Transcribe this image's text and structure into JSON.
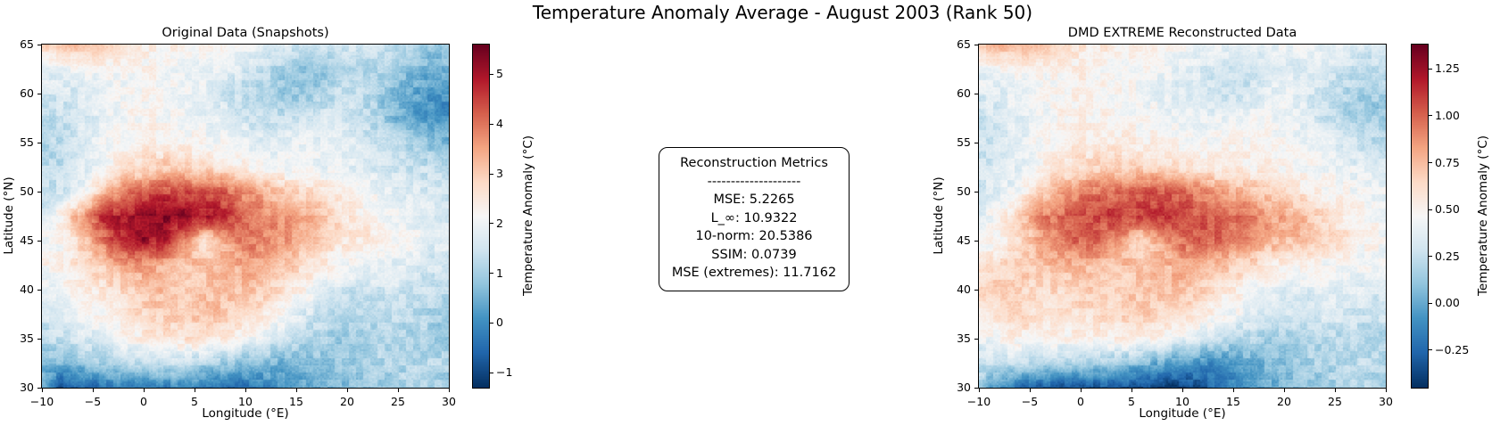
{
  "figure": {
    "suptitle": "Temperature Anomaly Average - August 2003 (Rank 50)",
    "background": "#ffffff"
  },
  "colormap": {
    "name": "RdBu_r",
    "anchors": [
      "#053061",
      "#2166ac",
      "#4393c3",
      "#92c5de",
      "#d1e5f0",
      "#f7f7f7",
      "#fddbc7",
      "#f4a582",
      "#d6604d",
      "#b2182b",
      "#67001f"
    ]
  },
  "metrics_box": {
    "title": "Reconstruction Metrics",
    "divider": "--------------------",
    "lines": [
      "MSE: 5.2265",
      "L_∞: 10.9322",
      "10-norm: 20.5386",
      "SSIM: 0.0739",
      "MSE (extremes): 11.7162"
    ]
  },
  "chart_data": [
    {
      "type": "heatmap",
      "title": "Original Data (Snapshots)",
      "xlabel": "Longitude (°E)",
      "ylabel": "Latitude (°N)",
      "colorbar_label": "Temperature Anomaly (°C)",
      "xlim": [
        -10,
        30
      ],
      "ylim": [
        30,
        65
      ],
      "xticks": [
        -10,
        -5,
        0,
        5,
        10,
        15,
        20,
        25,
        30
      ],
      "xtick_labels": [
        "−10",
        "−5",
        "0",
        "5",
        "10",
        "15",
        "20",
        "25",
        "30"
      ],
      "yticks": [
        65,
        60,
        55,
        50,
        45,
        40,
        35,
        30
      ],
      "ytick_labels": [
        "65",
        "60",
        "55",
        "50",
        "45",
        "40",
        "35",
        "30"
      ],
      "vmin": -1.3,
      "vmax": 5.6,
      "colorbar_ticks": [
        5,
        4,
        3,
        2,
        1,
        0,
        -1
      ],
      "colorbar_tick_labels": [
        "5",
        "4",
        "3",
        "2",
        "1",
        "0",
        "−1"
      ],
      "grid": {
        "lon_start": -10,
        "lon_step": 2,
        "lat_start": 65,
        "lat_step": -2.5,
        "values": [
          [
            3.0,
            3.1,
            3.2,
            2.9,
            2.6,
            2.5,
            2.4,
            2.3,
            2.2,
            2.1,
            2.0,
            1.9,
            1.7,
            1.5,
            1.5,
            1.6,
            1.5,
            1.4,
            1.2,
            1.0,
            0.9
          ],
          [
            1.9,
            1.9,
            2.0,
            2.1,
            2.1,
            2.2,
            2.1,
            2.0,
            1.9,
            1.8,
            1.6,
            1.3,
            0.9,
            0.7,
            0.8,
            1.0,
            1.2,
            1.0,
            0.7,
            0.5,
            0.6
          ],
          [
            1.5,
            1.6,
            1.7,
            1.9,
            2.1,
            2.2,
            2.1,
            2.0,
            1.8,
            1.5,
            1.3,
            1.1,
            0.8,
            0.9,
            1.2,
            1.4,
            1.2,
            0.8,
            0.4,
            0.2,
            0.1
          ],
          [
            1.3,
            1.4,
            1.6,
            1.9,
            2.1,
            2.2,
            2.2,
            2.1,
            1.9,
            1.7,
            1.5,
            1.3,
            1.4,
            1.5,
            1.6,
            1.5,
            1.2,
            0.8,
            0.4,
            0.1,
            0.0
          ],
          [
            1.1,
            1.3,
            1.6,
            2.0,
            2.2,
            2.3,
            2.3,
            2.2,
            2.1,
            2.0,
            1.9,
            1.8,
            1.8,
            1.9,
            1.9,
            1.8,
            1.6,
            1.3,
            1.0,
            0.8,
            0.7
          ],
          [
            1.2,
            1.3,
            1.7,
            2.1,
            2.5,
            2.8,
            3.0,
            2.9,
            2.7,
            2.5,
            2.3,
            2.1,
            2.0,
            2.0,
            1.9,
            1.8,
            1.7,
            1.5,
            1.4,
            1.3,
            1.2
          ],
          [
            1.4,
            1.5,
            2.0,
            3.0,
            3.8,
            4.2,
            4.4,
            4.5,
            4.4,
            4.2,
            3.8,
            3.4,
            3.0,
            2.8,
            2.6,
            2.4,
            2.1,
            1.9,
            1.7,
            1.6,
            1.5
          ],
          [
            1.7,
            2.4,
            3.7,
            4.7,
            5.0,
            5.2,
            5.4,
            5.2,
            5.0,
            4.7,
            4.0,
            3.8,
            3.6,
            3.4,
            3.0,
            2.6,
            2.2,
            2.0,
            1.9,
            1.8,
            1.6
          ],
          [
            2.0,
            2.2,
            3.0,
            4.0,
            4.8,
            5.1,
            4.8,
            3.8,
            2.6,
            3.4,
            4.0,
            3.8,
            3.6,
            3.2,
            2.8,
            2.5,
            2.6,
            2.4,
            2.1,
            1.8,
            1.7
          ],
          [
            2.2,
            2.4,
            2.7,
            3.0,
            3.4,
            3.6,
            3.4,
            3.2,
            3.1,
            3.2,
            3.5,
            3.3,
            3.1,
            2.8,
            2.4,
            2.1,
            1.9,
            1.7,
            1.8,
            1.6,
            1.5
          ],
          [
            1.8,
            2.0,
            2.4,
            2.6,
            2.8,
            3.1,
            3.2,
            3.1,
            3.1,
            3.3,
            3.1,
            2.9,
            2.6,
            2.2,
            1.8,
            1.5,
            1.4,
            1.6,
            1.5,
            1.4,
            1.2
          ],
          [
            1.5,
            1.7,
            2.0,
            2.2,
            2.5,
            2.8,
            3.0,
            3.0,
            3.1,
            3.0,
            2.8,
            2.5,
            2.1,
            1.6,
            1.3,
            1.1,
            1.1,
            1.3,
            1.2,
            1.1,
            1.0
          ],
          [
            1.2,
            1.4,
            1.6,
            1.8,
            2.1,
            2.4,
            2.6,
            2.7,
            2.6,
            2.4,
            2.1,
            1.7,
            1.4,
            1.2,
            1.0,
            0.9,
            1.0,
            1.1,
            1.1,
            1.0,
            0.9
          ],
          [
            0.8,
            0.6,
            0.8,
            1.0,
            1.2,
            1.3,
            1.4,
            1.3,
            1.1,
            0.9,
            0.7,
            0.6,
            0.6,
            0.7,
            0.8,
            0.9,
            1.0,
            1.1,
            1.2,
            1.2,
            1.1
          ],
          [
            0.3,
            -0.9,
            -0.6,
            -0.3,
            -0.1,
            -0.3,
            -0.2,
            -0.1,
            -0.3,
            -0.5,
            -0.4,
            -0.1,
            0.1,
            0.3,
            0.5,
            0.7,
            0.8,
            0.9,
            1.0,
            1.0,
            0.9
          ]
        ]
      }
    },
    {
      "type": "heatmap",
      "title": "DMD EXTREME Reconstructed Data",
      "xlabel": "Longitude (°E)",
      "ylabel": "Latitude (°N)",
      "colorbar_label": "Temperature Anomaly (°C)",
      "xlim": [
        -10,
        30
      ],
      "ylim": [
        30,
        65
      ],
      "xticks": [
        -10,
        -5,
        0,
        5,
        10,
        15,
        20,
        25,
        30
      ],
      "xtick_labels": [
        "−10",
        "−5",
        "0",
        "5",
        "10",
        "15",
        "20",
        "25",
        "30"
      ],
      "yticks": [
        65,
        60,
        55,
        50,
        45,
        40,
        35,
        30
      ],
      "ytick_labels": [
        "65",
        "60",
        "55",
        "50",
        "45",
        "40",
        "35",
        "30"
      ],
      "vmin": -0.45,
      "vmax": 1.38,
      "colorbar_ticks": [
        1.25,
        1.0,
        0.75,
        0.5,
        0.25,
        0.0,
        -0.25
      ],
      "colorbar_tick_labels": [
        "1.25",
        "1.00",
        "0.75",
        "0.50",
        "0.25",
        "0.00",
        "−0.25"
      ],
      "grid": {
        "lon_start": -10,
        "lon_step": 2,
        "lat_start": 65,
        "lat_step": -2.5,
        "values": [
          [
            0.75,
            0.78,
            0.75,
            0.7,
            0.65,
            0.6,
            0.56,
            0.52,
            0.5,
            0.48,
            0.46,
            0.44,
            0.42,
            0.4,
            0.4,
            0.42,
            0.42,
            0.4,
            0.38,
            0.36,
            0.35
          ],
          [
            0.42,
            0.44,
            0.46,
            0.48,
            0.5,
            0.5,
            0.49,
            0.47,
            0.45,
            0.42,
            0.38,
            0.33,
            0.28,
            0.26,
            0.28,
            0.32,
            0.35,
            0.32,
            0.27,
            0.23,
            0.24
          ],
          [
            0.34,
            0.36,
            0.4,
            0.45,
            0.48,
            0.5,
            0.49,
            0.47,
            0.43,
            0.38,
            0.35,
            0.32,
            0.28,
            0.3,
            0.36,
            0.4,
            0.36,
            0.28,
            0.2,
            0.16,
            0.15
          ],
          [
            0.3,
            0.33,
            0.38,
            0.44,
            0.49,
            0.51,
            0.51,
            0.5,
            0.47,
            0.44,
            0.41,
            0.38,
            0.4,
            0.42,
            0.43,
            0.42,
            0.36,
            0.28,
            0.2,
            0.15,
            0.13
          ],
          [
            0.28,
            0.31,
            0.37,
            0.46,
            0.51,
            0.53,
            0.54,
            0.53,
            0.51,
            0.5,
            0.48,
            0.47,
            0.47,
            0.49,
            0.49,
            0.47,
            0.43,
            0.37,
            0.31,
            0.27,
            0.25
          ],
          [
            0.3,
            0.32,
            0.39,
            0.48,
            0.56,
            0.62,
            0.66,
            0.66,
            0.64,
            0.62,
            0.59,
            0.55,
            0.53,
            0.52,
            0.51,
            0.49,
            0.46,
            0.42,
            0.39,
            0.36,
            0.34
          ],
          [
            0.33,
            0.36,
            0.45,
            0.63,
            0.8,
            0.9,
            0.96,
            1.0,
            1.03,
            1.05,
            1.0,
            0.92,
            0.83,
            0.76,
            0.7,
            0.64,
            0.57,
            0.51,
            0.47,
            0.43,
            0.4
          ],
          [
            0.38,
            0.49,
            0.7,
            0.9,
            1.0,
            1.06,
            1.1,
            1.1,
            1.08,
            1.12,
            1.08,
            1.03,
            0.98,
            0.95,
            0.88,
            0.8,
            0.72,
            0.62,
            0.55,
            0.5,
            0.45
          ],
          [
            0.44,
            0.5,
            0.64,
            0.8,
            0.94,
            1.0,
            0.96,
            0.82,
            0.62,
            0.82,
            0.96,
            1.02,
            0.98,
            0.9,
            0.8,
            0.73,
            0.76,
            0.68,
            0.58,
            0.5,
            0.46
          ],
          [
            0.58,
            0.63,
            0.68,
            0.7,
            0.74,
            0.78,
            0.76,
            0.72,
            0.7,
            0.74,
            0.8,
            0.77,
            0.73,
            0.66,
            0.58,
            0.52,
            0.49,
            0.45,
            0.47,
            0.43,
            0.41
          ],
          [
            0.66,
            0.68,
            0.66,
            0.63,
            0.64,
            0.67,
            0.69,
            0.69,
            0.71,
            0.75,
            0.71,
            0.66,
            0.58,
            0.5,
            0.43,
            0.37,
            0.35,
            0.39,
            0.37,
            0.35,
            0.31
          ],
          [
            0.52,
            0.6,
            0.63,
            0.6,
            0.58,
            0.6,
            0.63,
            0.65,
            0.67,
            0.65,
            0.61,
            0.55,
            0.48,
            0.4,
            0.33,
            0.29,
            0.29,
            0.33,
            0.31,
            0.29,
            0.27
          ],
          [
            0.38,
            0.48,
            0.53,
            0.5,
            0.48,
            0.5,
            0.53,
            0.54,
            0.52,
            0.46,
            0.38,
            0.31,
            0.25,
            0.21,
            0.17,
            0.15,
            0.17,
            0.21,
            0.23,
            0.21,
            0.19
          ],
          [
            0.28,
            0.26,
            0.24,
            0.22,
            0.2,
            0.18,
            0.16,
            0.12,
            0.06,
            0.0,
            -0.06,
            -0.1,
            -0.08,
            -0.02,
            0.04,
            0.1,
            0.14,
            0.18,
            0.21,
            0.23,
            0.21
          ],
          [
            0.12,
            -0.12,
            -0.22,
            -0.27,
            -0.31,
            -0.33,
            -0.31,
            -0.33,
            -0.36,
            -0.41,
            -0.39,
            -0.31,
            -0.21,
            -0.11,
            -0.01,
            0.05,
            0.1,
            0.14,
            0.17,
            0.19,
            0.17
          ]
        ]
      }
    }
  ]
}
